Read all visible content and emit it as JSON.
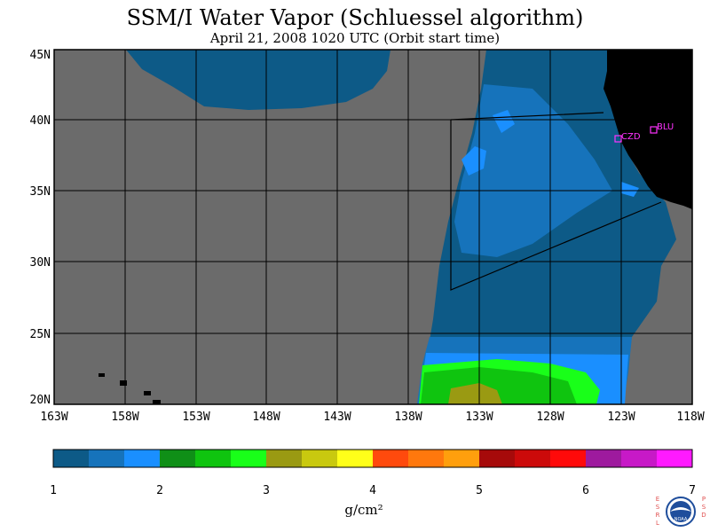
{
  "map": {
    "title": "SSM/I Water Vapor (Schluessel algorithm)",
    "subtitle": "April 21, 2008  1020 UTC  (Orbit start time)",
    "lat_labels": [
      "45N",
      "40N",
      "35N",
      "30N",
      "25N",
      "20N"
    ],
    "lon_labels": [
      "163W",
      "158W",
      "153W",
      "148W",
      "143W",
      "138W",
      "133W",
      "128W",
      "123W",
      "118W"
    ],
    "stations": [
      {
        "id": "czd",
        "label": "CZD"
      },
      {
        "id": "blu",
        "label": "BLU"
      }
    ],
    "colors": {
      "land": "#000000",
      "no_data": "#6b6b6b",
      "grid": "#000000",
      "station": "#ff33ff"
    }
  },
  "colorbar": {
    "tick_labels": [
      "1",
      "2",
      "3",
      "4",
      "5",
      "6",
      "7"
    ],
    "units": "g/cm²",
    "colors": [
      "#0d5a87",
      "#1673bb",
      "#1a8fff",
      "#0f8f17",
      "#0fc40f",
      "#19ff19",
      "#9a9a12",
      "#c9c90f",
      "#ffff19",
      "#ff4a0d",
      "#ff780d",
      "#ff9f0d",
      "#a60a0a",
      "#cc0a0a",
      "#ff0a0a",
      "#9e1a9e",
      "#c719c7",
      "#ff1aff"
    ]
  },
  "logo": {
    "left_text": "ESRL",
    "right_text": "PSD",
    "center_text": "NOAA"
  }
}
